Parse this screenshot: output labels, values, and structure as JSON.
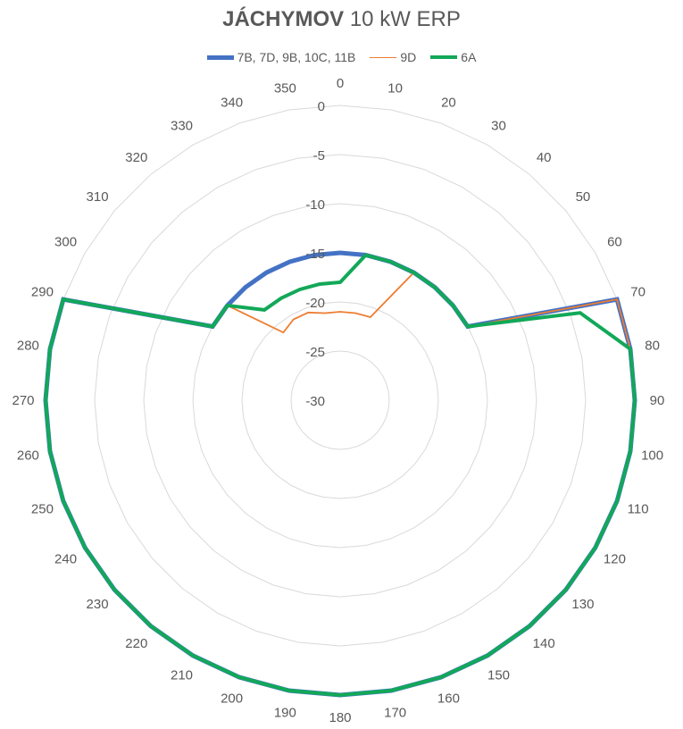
{
  "chart_data": {
    "type": "radar",
    "title_bold": "JÁCHYMOV",
    "title_rest": " 10 kW ERP",
    "categories": [
      "0",
      "10",
      "20",
      "30",
      "40",
      "50",
      "60",
      "70",
      "80",
      "90",
      "100",
      "110",
      "120",
      "130",
      "140",
      "150",
      "160",
      "170",
      "180",
      "190",
      "200",
      "210",
      "220",
      "230",
      "240",
      "250",
      "260",
      "270",
      "280",
      "290",
      "300",
      "310",
      "320",
      "330",
      "340",
      "350"
    ],
    "r_ticks": [
      "0",
      "-5",
      "-10",
      "-15",
      "-20",
      "-25",
      "-30"
    ],
    "rlim": [
      -30,
      0
    ],
    "grid": true,
    "legend_position": "top",
    "series": [
      {
        "name": "7B, 7D, 9B, 10C, 11B",
        "color": "#4472C4",
        "width": 5,
        "values": [
          -15,
          -15,
          -15,
          -15,
          -15,
          -15,
          -15,
          0,
          0,
          0,
          0,
          0,
          0,
          0,
          0,
          0,
          0,
          0,
          0,
          0,
          0,
          0,
          0,
          0,
          0,
          0,
          0,
          0,
          0,
          0,
          -15,
          -15,
          -15,
          -15,
          -15,
          -15
        ]
      },
      {
        "name": "9D",
        "color": "#ED7D31",
        "width": 1.8,
        "values": [
          -21,
          -21,
          -21,
          -15,
          -15,
          -15,
          -15,
          0,
          0,
          0,
          0,
          0,
          0,
          0,
          0,
          0,
          0,
          0,
          0,
          0,
          0,
          0,
          0,
          0,
          0,
          0,
          0,
          0,
          0,
          0,
          -15,
          -15,
          -21,
          -20.5,
          -20.5,
          -21
        ]
      },
      {
        "name": "6A",
        "color": "#12A858",
        "width": 4,
        "values": [
          -18,
          -15,
          -15,
          -15,
          -15,
          -15,
          -15,
          -4,
          0,
          0,
          0,
          0,
          0,
          0,
          0,
          0,
          0,
          0,
          0,
          0,
          0,
          0,
          0,
          0,
          0,
          0,
          0,
          0,
          0,
          0,
          -15,
          -15,
          -18,
          -18,
          -18,
          -18
        ]
      }
    ]
  }
}
